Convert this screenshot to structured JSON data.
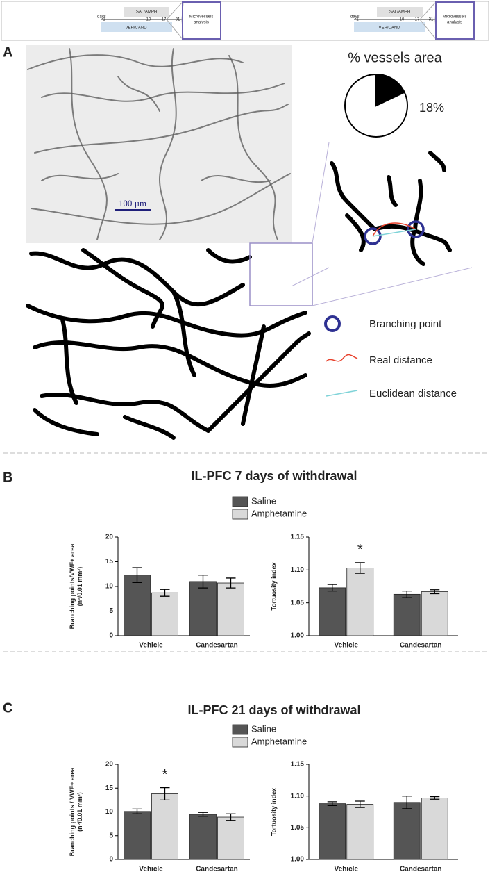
{
  "timelines": [
    {
      "days": "days",
      "day_ticks": [
        "1",
        "10",
        "17",
        "31"
      ],
      "treatment_1": "SAL/AMPH",
      "treatment_2": "VEH/CAND",
      "analysis": [
        "Microvessels",
        "analysis"
      ]
    },
    {
      "days": "days",
      "day_ticks": [
        "1",
        "10",
        "17",
        "31"
      ],
      "treatment_1": "SAL/AMPH",
      "treatment_2": "VEH/CAND",
      "analysis": [
        "Microvessels",
        "analysis"
      ]
    }
  ],
  "panel_a": {
    "label": "A",
    "scale_bar": "100 µm",
    "legend": [
      "Branching point",
      "Real distance",
      "Euclidean distance"
    ]
  },
  "panel_b": {
    "label": "B",
    "title": "IL-PFC 7 days of withdrawal"
  },
  "panel_c": {
    "label": "C",
    "title": "IL-PFC 21 days of withdrawal"
  },
  "chart_data": [
    {
      "type": "pie",
      "title": "% vessels area",
      "values": [
        18
      ],
      "value_labels": [
        "18%"
      ],
      "color": "#000000",
      "background": "#ffffff"
    },
    {
      "type": "bar",
      "y_label": [
        "Branching points/VWF+ area",
        "(n°/0.01 mm²)"
      ],
      "categories": [
        "Vehicle",
        "Candesartan"
      ],
      "series": [
        {
          "name": "Saline",
          "color": "#555555",
          "values": [
            12.3,
            11.0
          ],
          "errors": [
            1.5,
            1.3
          ]
        },
        {
          "name": "Amphetamine",
          "color": "#d9d9d9",
          "values": [
            8.7,
            10.7
          ],
          "errors": [
            0.7,
            1.0
          ]
        }
      ],
      "ylim": [
        0,
        20
      ],
      "yticks": [
        0,
        5,
        10,
        15,
        20
      ]
    },
    {
      "type": "bar",
      "y_label": [
        "Tortuosity index"
      ],
      "categories": [
        "Vehicle",
        "Candesartan"
      ],
      "series": [
        {
          "color": "#555555",
          "values": [
            1.073,
            1.063
          ],
          "errors": [
            0.005,
            0.005
          ]
        },
        {
          "color": "#d9d9d9",
          "values": [
            1.103,
            1.067
          ],
          "errors": [
            0.008,
            0.003
          ]
        }
      ],
      "ylim": [
        1,
        1.15
      ],
      "yticks": [
        {
          "value": 1,
          "label": "1.00"
        },
        1.05,
        {
          "value": 1.1,
          "label": "1.10"
        },
        1.15
      ],
      "annotations": [
        {
          "text": "*",
          "category": 0,
          "series": 1
        }
      ]
    },
    {
      "type": "bar",
      "y_label": [
        "Branching points / VWF+ area",
        "(n°/0.01 mm²)"
      ],
      "categories": [
        "Vehicle",
        "Candesartan"
      ],
      "series": [
        {
          "name": "Saline",
          "color": "#555555",
          "values": [
            10.1,
            9.5
          ],
          "errors": [
            0.5,
            0.4
          ]
        },
        {
          "name": "Amphetamine",
          "color": "#d9d9d9",
          "values": [
            13.8,
            8.9
          ],
          "errors": [
            1.3,
            0.7
          ]
        }
      ],
      "ylim": [
        0,
        20
      ],
      "yticks": [
        0,
        5,
        10,
        15,
        20
      ],
      "annotations": [
        {
          "text": "*",
          "category": 0,
          "series": 1
        }
      ]
    },
    {
      "type": "bar",
      "y_label": [
        "Tortuosity index"
      ],
      "categories": [
        "Vehicle",
        "Candesartan"
      ],
      "series": [
        {
          "color": "#555555",
          "values": [
            1.088,
            1.09
          ],
          "errors": [
            0.003,
            0.01
          ]
        },
        {
          "color": "#d9d9d9",
          "values": [
            1.087,
            1.097
          ],
          "errors": [
            0.005,
            0.002
          ]
        }
      ],
      "ylim": [
        1,
        1.15
      ],
      "yticks": [
        {
          "value": 1,
          "label": "1.00"
        },
        1.05,
        {
          "value": 1.1,
          "label": "1.10"
        },
        1.15
      ]
    }
  ]
}
